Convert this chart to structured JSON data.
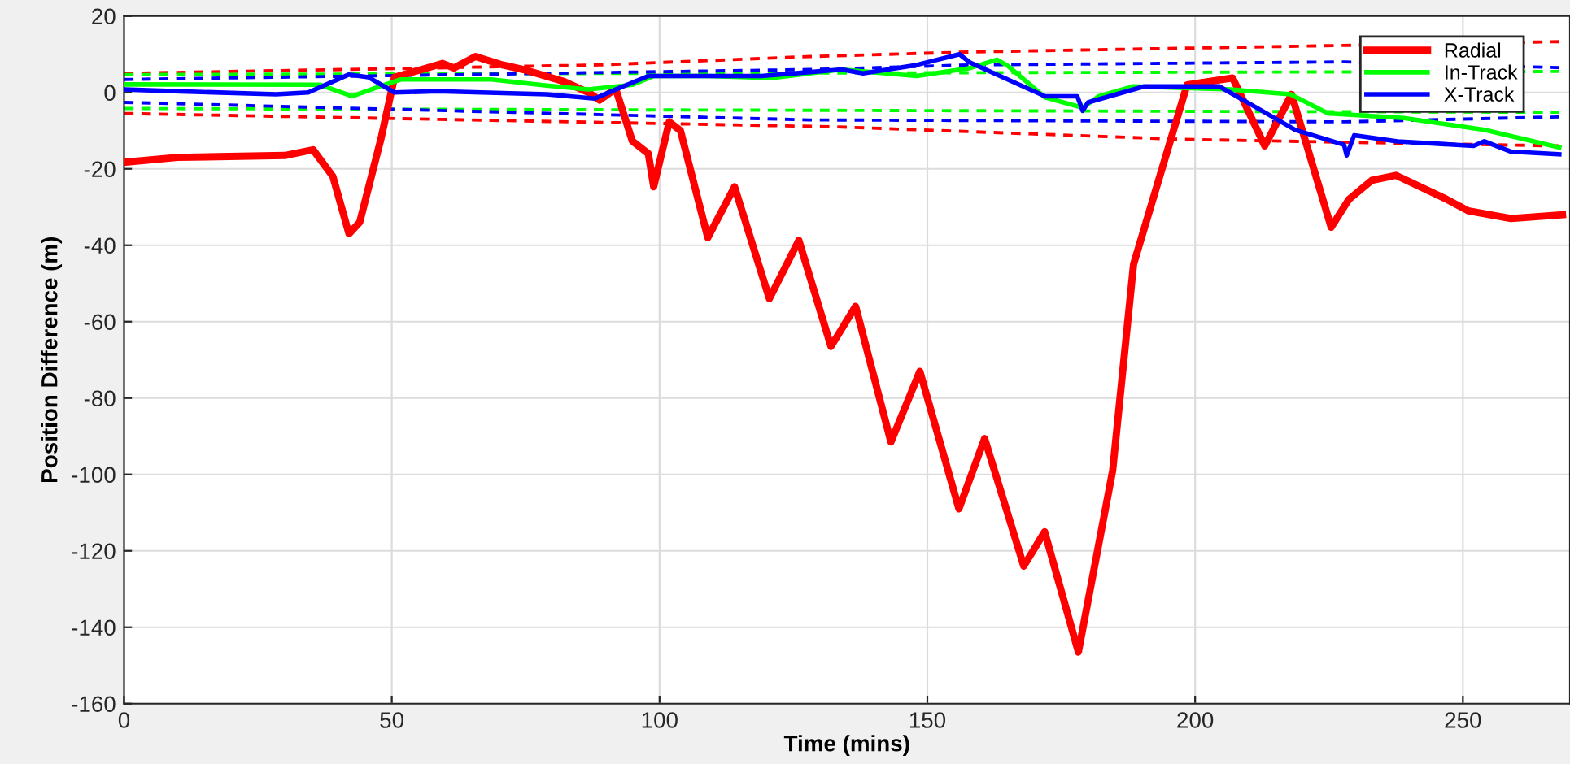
{
  "chart_data": {
    "type": "line",
    "xlabel": "Time (mins)",
    "ylabel": "Position Difference (m)",
    "xlim": [
      0,
      270
    ],
    "ylim": [
      -160,
      20
    ],
    "xticks": [
      0,
      50,
      100,
      150,
      200,
      250
    ],
    "yticks": [
      -160,
      -140,
      -120,
      -100,
      -80,
      -60,
      -40,
      -20,
      0,
      20
    ],
    "grid": true,
    "legend": "top right",
    "marker": "none",
    "series": [
      {
        "name": "Radial",
        "color": "#ff0000",
        "line_style": "solid",
        "x": [
          0,
          10,
          30,
          35.3,
          39,
          42,
          44,
          48,
          50.5,
          55.6,
          59.5,
          61.6,
          65.6,
          70.7,
          74.6,
          81.9,
          86.7,
          88.8,
          91.8,
          94.9,
          97.9,
          98.9,
          101.8,
          103.9,
          109,
          114,
          120.5,
          126,
          132,
          136.6,
          143.2,
          148.6,
          155.9,
          160.7,
          168,
          171.9,
          178.2,
          184.6,
          188.5,
          193.6,
          198.5,
          207,
          213,
          218,
          225.4,
          228.7,
          233,
          237.5,
          247,
          251,
          259,
          268.6
        ],
        "values": [
          -18.3,
          -17,
          -16.5,
          -15,
          -22,
          -37,
          -34,
          -12,
          4,
          6,
          7.6,
          6.4,
          9.4,
          7.2,
          6,
          3,
          0,
          -2,
          1,
          -12.7,
          -16,
          -24.7,
          -7.7,
          -10,
          -38,
          -24.7,
          -54,
          -38.7,
          -66.5,
          -56,
          -91.5,
          -73,
          -109,
          -90.6,
          -124,
          -115,
          -146.5,
          -99,
          -45,
          -21,
          2,
          3.8,
          -14,
          -0.5,
          -35.3,
          -28,
          -23,
          -21.7,
          -28,
          -31,
          -33,
          -32
        ]
      },
      {
        "name": "In-Track",
        "color": "#00ff00",
        "line_style": "solid",
        "x": [
          0,
          36.6,
          42.6,
          48.6,
          51.7,
          68.6,
          78.9,
          86.7,
          94.9,
          98.9,
          109,
          121,
          134,
          148,
          158,
          163,
          165,
          172,
          179,
          182,
          188.5,
          206.6,
          217.8,
          224.8,
          239,
          254,
          268
        ],
        "values": [
          2.1,
          2,
          -1,
          2,
          3.4,
          3.4,
          1.8,
          0.8,
          2,
          4.3,
          4.3,
          3.8,
          6,
          4.3,
          6.4,
          8.6,
          7,
          -1.3,
          -4,
          -1,
          1.6,
          0.8,
          -0.5,
          -5.5,
          -6.7,
          -9.8,
          -14.4
        ]
      },
      {
        "name": "X-Track",
        "color": "#0000ff",
        "line_style": "solid",
        "x": [
          0,
          8,
          28.4,
          34.4,
          42,
          45.6,
          50.5,
          58.6,
          78.9,
          87.9,
          92.7,
          97.9,
          119,
          134,
          138,
          148,
          156,
          158,
          172,
          178,
          179,
          180,
          190.5,
          204.5,
          218.7,
          227.8,
          228.3,
          229.7,
          237.8,
          252,
          254,
          259,
          268
        ],
        "values": [
          0.8,
          0.4,
          -0.5,
          0,
          4.7,
          4,
          0,
          0.3,
          -0.5,
          -1.6,
          1.3,
          4.3,
          4.3,
          6,
          5,
          7.2,
          10,
          7.8,
          -1,
          -1,
          -4.8,
          -2.6,
          1.6,
          1.6,
          -9.8,
          -13.7,
          -16.5,
          -11.2,
          -12.8,
          -14,
          -12.8,
          -15.5,
          -16.2
        ]
      },
      {
        "color": "#ff0000",
        "line_style": "dashed",
        "x": [
          0,
          88.8,
          128,
          158,
          268
        ],
        "values": [
          5,
          7.2,
          9.4,
          10.6,
          13.3
        ]
      },
      {
        "color": "#ff0000",
        "line_style": "dashed",
        "x": [
          0,
          133,
          198,
          268
        ],
        "values": [
          -5.5,
          -9,
          -12.3,
          -14
        ]
      },
      {
        "color": "#00ff00",
        "line_style": "dashed",
        "x": [
          0,
          268
        ],
        "values": [
          4.7,
          5.5
        ]
      },
      {
        "color": "#00ff00",
        "line_style": "dashed",
        "x": [
          0,
          268
        ],
        "values": [
          -4.2,
          -5.2
        ]
      },
      {
        "color": "#0000ff",
        "line_style": "dashed",
        "x": [
          0,
          128,
          158,
          228,
          268
        ],
        "values": [
          3.4,
          6,
          7.2,
          8,
          6.5
        ]
      },
      {
        "color": "#0000ff",
        "line_style": "dashed",
        "x": [
          0,
          128,
          228,
          268
        ],
        "values": [
          -2.6,
          -7.2,
          -7.7,
          -6.4
        ]
      }
    ]
  }
}
